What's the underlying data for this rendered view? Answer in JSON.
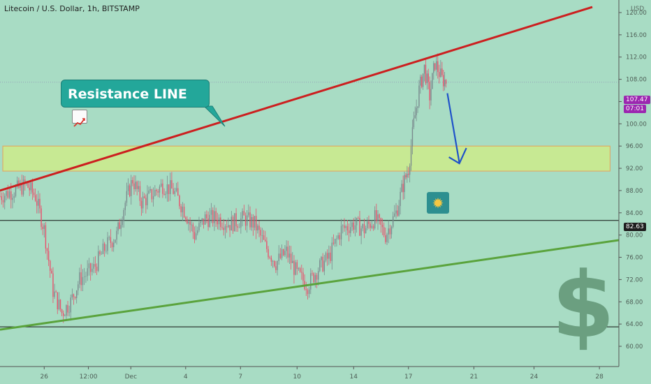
{
  "header": {
    "title": "Litecoin / U.S. Dollar, 1h, BITSTAMP",
    "currency": "USD"
  },
  "annotations": {
    "callout_text": "Resistance LINE",
    "callout_icon": "chart-increasing-icon",
    "boom_icon": "collision-icon",
    "watermark": "$"
  },
  "price_labels": {
    "last_price": "107.47",
    "countdown": "07:01",
    "support_level": "82.63"
  },
  "colors": {
    "background": "#a8dcc4",
    "resistance_line": "#cc1f1f",
    "support_trend": "#5aa33c",
    "zone_fill": "#cdeb8b",
    "zone_border": "#e6a15a",
    "candle_up": "#7a8a8e",
    "candle_down": "#e8506b",
    "forecast_arrow": "#1f52c9",
    "label_purple": "#9c27b0"
  },
  "chart_data": {
    "type": "candlestick",
    "y_axis": {
      "min": 56,
      "max": 124,
      "ticks": [
        {
          "value": 120,
          "label": "120.00"
        },
        {
          "value": 116,
          "label": "116.00"
        },
        {
          "value": 112,
          "label": "112.00"
        },
        {
          "value": 108,
          "label": "108.00"
        },
        {
          "value": 104,
          "label": "104.00"
        },
        {
          "value": 100,
          "label": "100.00"
        },
        {
          "value": 96,
          "label": "96.00"
        },
        {
          "value": 92,
          "label": "92.00"
        },
        {
          "value": 88,
          "label": "88.00"
        },
        {
          "value": 84,
          "label": "84.00"
        },
        {
          "value": 80,
          "label": "80.00"
        },
        {
          "value": 76,
          "label": "76.00"
        },
        {
          "value": 72,
          "label": "72.00"
        },
        {
          "value": 68,
          "label": "68.00"
        },
        {
          "value": 64,
          "label": "64.00"
        },
        {
          "value": 60,
          "label": "60.00"
        }
      ]
    },
    "x_axis": {
      "min": 0,
      "max": 35,
      "ticks": [
        {
          "pos": 2.5,
          "label": "26"
        },
        {
          "pos": 5,
          "label": "12:00"
        },
        {
          "pos": 7.4,
          "label": "Dec"
        },
        {
          "pos": 10.5,
          "label": "4"
        },
        {
          "pos": 13.6,
          "label": "7"
        },
        {
          "pos": 16.8,
          "label": "10"
        },
        {
          "pos": 20,
          "label": "14"
        },
        {
          "pos": 23.1,
          "label": "17"
        },
        {
          "pos": 26.8,
          "label": "21"
        },
        {
          "pos": 30.2,
          "label": "24"
        },
        {
          "pos": 33.9,
          "label": "28"
        }
      ]
    },
    "price_path": [
      [
        0,
        87
      ],
      [
        0.8,
        88
      ],
      [
        1.5,
        89
      ],
      [
        2,
        87
      ],
      [
        2.5,
        81
      ],
      [
        3,
        70
      ],
      [
        3.5,
        66
      ],
      [
        4,
        68
      ],
      [
        4.5,
        72
      ],
      [
        5.3,
        74
      ],
      [
        6,
        78
      ],
      [
        6.6,
        80
      ],
      [
        7,
        85
      ],
      [
        7.5,
        90
      ],
      [
        8,
        86
      ],
      [
        8.5,
        87
      ],
      [
        9.2,
        89
      ],
      [
        9.8,
        88
      ],
      [
        10.5,
        84
      ],
      [
        11,
        80
      ],
      [
        11.6,
        83
      ],
      [
        12.3,
        83
      ],
      [
        13,
        82
      ],
      [
        13.8,
        83
      ],
      [
        14.4,
        82
      ],
      [
        15,
        78
      ],
      [
        15.6,
        75
      ],
      [
        16.2,
        77
      ],
      [
        16.8,
        73
      ],
      [
        17.4,
        71
      ],
      [
        18,
        74
      ],
      [
        18.6,
        76
      ],
      [
        19.3,
        81
      ],
      [
        20,
        82
      ],
      [
        20.6,
        81
      ],
      [
        21.2,
        83
      ],
      [
        21.8,
        80
      ],
      [
        22.4,
        84
      ],
      [
        22.8,
        89
      ],
      [
        23.1,
        92
      ],
      [
        23.4,
        100
      ],
      [
        23.7,
        106
      ],
      [
        24,
        110
      ],
      [
        24.3,
        105
      ],
      [
        24.6,
        111
      ],
      [
        25,
        108
      ],
      [
        25.3,
        107.5
      ]
    ],
    "resistance_line": {
      "from": [
        0,
        88
      ],
      "to": [
        33.5,
        121
      ]
    },
    "support_trendline": {
      "from": [
        0,
        63
      ],
      "to": [
        37,
        80
      ]
    },
    "horizontal_levels": [
      82.63,
      63.5
    ],
    "supply_zone": {
      "x_from": 0,
      "x_to": 34.5,
      "y_low": 91.5,
      "y_high": 96
    },
    "forecast_arrow": {
      "from": [
        25.3,
        105.5
      ],
      "mid": [
        25.9,
        93
      ],
      "to": [
        26.5,
        95.5
      ]
    }
  }
}
